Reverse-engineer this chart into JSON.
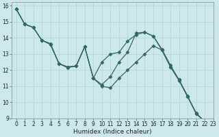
{
  "xlabel": "Humidex (Indice chaleur)",
  "ylabel": "",
  "xlim": [
    -0.5,
    23
  ],
  "ylim": [
    9,
    16.2
  ],
  "yticks": [
    9,
    10,
    11,
    12,
    13,
    14,
    15,
    16
  ],
  "xticks": [
    0,
    1,
    2,
    3,
    4,
    5,
    6,
    7,
    8,
    9,
    10,
    11,
    12,
    13,
    14,
    15,
    16,
    17,
    18,
    19,
    20,
    21,
    22,
    23
  ],
  "bg_color": "#cce8e8",
  "grid_color": "#b0d4d4",
  "line_color": "#336666",
  "series": [
    {
      "x": [
        0,
        1,
        2,
        3,
        4,
        5,
        6,
        7,
        8,
        9,
        10,
        11,
        12,
        13,
        14,
        15,
        16,
        17,
        18,
        19,
        20,
        21,
        22
      ],
      "y": [
        15.8,
        14.85,
        14.65,
        13.85,
        13.65,
        12.4,
        12.15,
        12.25,
        13.45,
        11.5,
        11.1,
        11.6,
        12.5,
        13.1,
        14.3,
        14.35,
        14.1,
        13.3,
        12.3,
        11.4,
        10.4,
        9.3,
        8.8
      ]
    },
    {
      "x": [
        0,
        1,
        2,
        3,
        4,
        5,
        6,
        7,
        8,
        9,
        10,
        11,
        12,
        13,
        14,
        15,
        16,
        17,
        18,
        19,
        20,
        21,
        22
      ],
      "y": [
        15.8,
        14.85,
        14.65,
        13.85,
        13.6,
        12.4,
        12.2,
        12.25,
        13.45,
        11.5,
        12.5,
        13.0,
        13.1,
        13.8,
        14.2,
        14.35,
        14.1,
        13.25,
        12.2,
        11.35,
        10.35,
        9.3,
        8.8
      ]
    },
    {
      "x": [
        0,
        1,
        2,
        3,
        4,
        5,
        6,
        7,
        8,
        9,
        10,
        11,
        12,
        13,
        14,
        15,
        16,
        17,
        18,
        19,
        20,
        21,
        22
      ],
      "y": [
        15.8,
        14.85,
        14.65,
        13.85,
        13.6,
        12.4,
        12.2,
        12.25,
        13.45,
        11.5,
        11.0,
        10.9,
        11.5,
        12.0,
        12.5,
        13.0,
        13.5,
        13.25,
        12.2,
        11.4,
        10.35,
        9.35,
        8.8
      ]
    }
  ],
  "marker": "D",
  "markersize": 2.5,
  "linewidth": 0.9
}
